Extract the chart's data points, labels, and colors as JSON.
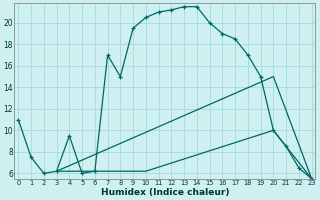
{
  "xlabel": "Humidex (Indice chaleur)",
  "bg_color": "#cff0f0",
  "grid_color": "#aadddd",
  "line_color": "#006666",
  "line1_x": [
    0,
    1,
    2,
    3,
    4,
    5,
    6,
    7,
    8,
    9,
    10,
    11,
    12,
    13,
    14,
    15,
    16,
    17,
    18,
    19,
    20,
    21,
    22,
    23
  ],
  "line1_y": [
    11,
    7.5,
    6,
    6.2,
    9.5,
    6,
    6.2,
    17,
    15,
    19.5,
    20.5,
    21,
    21.2,
    21.5,
    21.5,
    20,
    19,
    18.5,
    17,
    15,
    10,
    8.5,
    6.5,
    5.5
  ],
  "line2_x": [
    3,
    20,
    23
  ],
  "line2_y": [
    6.2,
    15,
    5.5
  ],
  "line3_x": [
    3,
    10,
    20,
    23
  ],
  "line3_y": [
    6.2,
    6.2,
    10,
    5.5
  ],
  "xlim": [
    0,
    23
  ],
  "ylim": [
    5.5,
    21.8
  ],
  "yticks": [
    6,
    8,
    10,
    12,
    14,
    16,
    18,
    20
  ],
  "xticks": [
    0,
    1,
    2,
    3,
    4,
    5,
    6,
    7,
    8,
    9,
    10,
    11,
    12,
    13,
    14,
    15,
    16,
    17,
    18,
    19,
    20,
    21,
    22,
    23
  ]
}
